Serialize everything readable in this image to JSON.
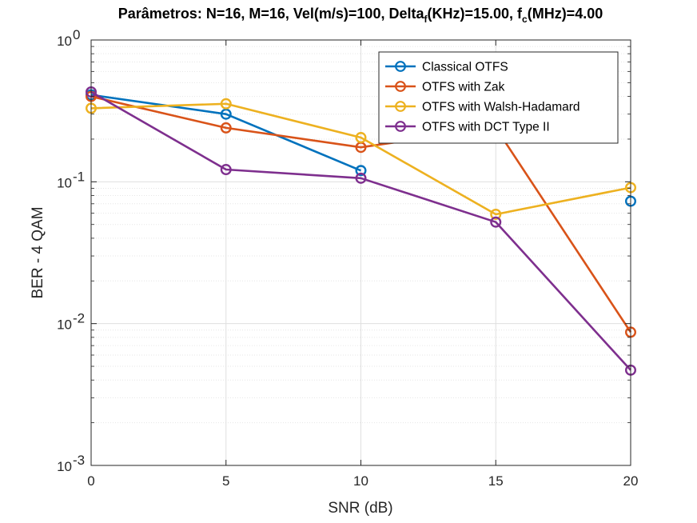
{
  "chart_data": {
    "type": "line",
    "title_parts": {
      "p1": "Parâmetros: N=16, M=16, Vel(m/s)=100, Delta",
      "s1": "f",
      "p2": "(KHz)=15.00, f",
      "s2": "c",
      "p3": "(MHz)=4.00"
    },
    "xlabel": "SNR (dB)",
    "ylabel": "BER - 4 QAM",
    "xlim": [
      0,
      20
    ],
    "ylim": [
      0.001,
      1
    ],
    "yscale": "log",
    "grid": true,
    "minor_grid": true,
    "legend_position": "top-right",
    "x_ticks": [
      {
        "value": 0,
        "label": "0"
      },
      {
        "value": 5,
        "label": "5"
      },
      {
        "value": 10,
        "label": "10"
      },
      {
        "value": 15,
        "label": "15"
      },
      {
        "value": 20,
        "label": "20"
      }
    ],
    "y_ticks": [
      {
        "value": 1,
        "base": "10",
        "exp": "0"
      },
      {
        "value": 0.1,
        "base": "10",
        "exp": "-1"
      },
      {
        "value": 0.01,
        "base": "10",
        "exp": "-2"
      },
      {
        "value": 0.001,
        "base": "10",
        "exp": "-3"
      }
    ],
    "series": [
      {
        "name": "Classical OTFS",
        "color": "#0072BD",
        "x": [
          0,
          5,
          10,
          15,
          20
        ],
        "y": [
          0.41,
          0.3,
          0.12,
          null,
          0.073
        ]
      },
      {
        "name": "OTFS with Zak",
        "color": "#D95319",
        "x": [
          0,
          5,
          10,
          15,
          20
        ],
        "y": [
          0.4,
          0.24,
          0.175,
          0.24,
          0.0087
        ]
      },
      {
        "name": "OTFS with Walsh-Hadamard",
        "color": "#EDB120",
        "x": [
          0,
          5,
          10,
          15,
          20
        ],
        "y": [
          0.33,
          0.355,
          0.205,
          0.059,
          0.091
        ]
      },
      {
        "name": "OTFS with DCT Type II",
        "color": "#7E2F8E",
        "x": [
          0,
          5,
          10,
          15,
          20
        ],
        "y": [
          0.43,
          0.122,
          0.106,
          0.052,
          0.0047
        ]
      }
    ]
  }
}
